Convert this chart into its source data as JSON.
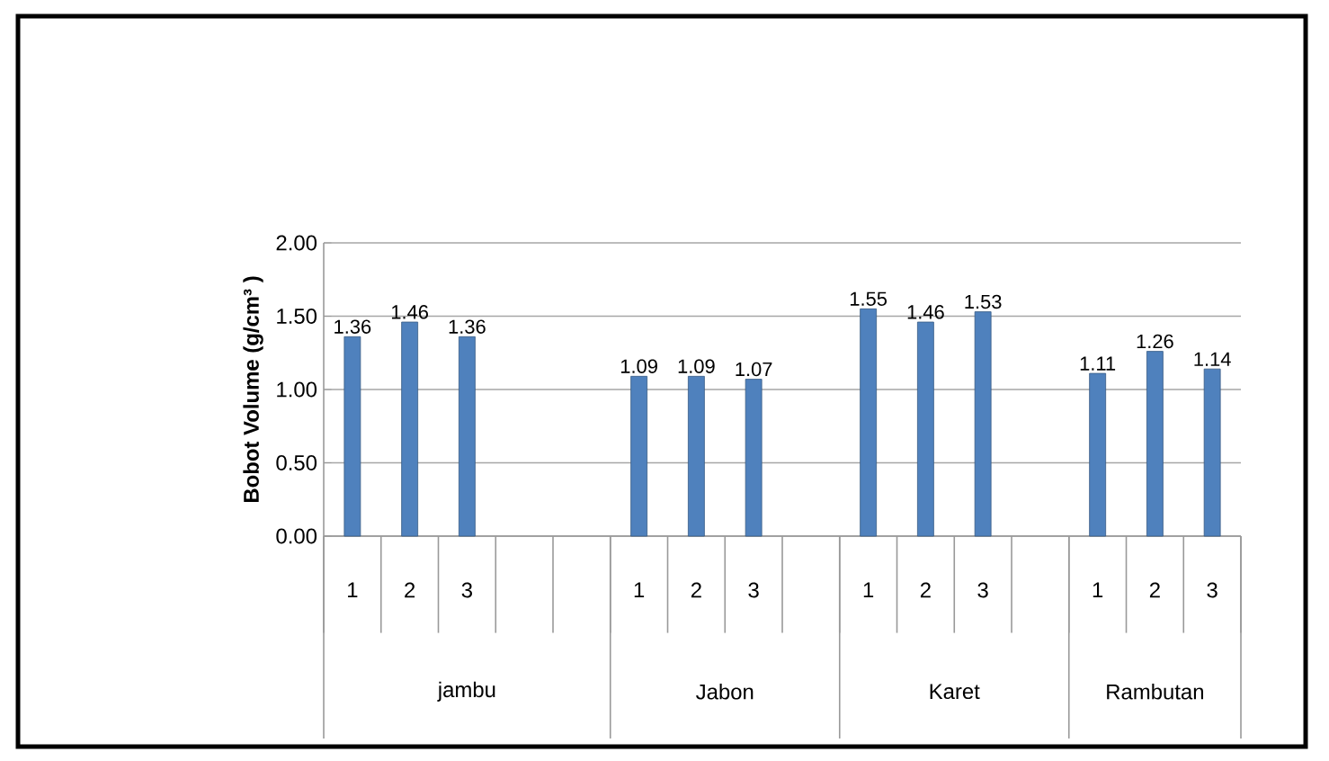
{
  "chart_data": {
    "type": "bar",
    "ylabel": "Bobot Volume  (g/cm³ )",
    "categories": [
      "1",
      "2",
      "3",
      null,
      null,
      "1",
      "2",
      "3",
      null,
      "1",
      "2",
      "3",
      null,
      "1",
      "2",
      "3"
    ],
    "values": [
      1.36,
      1.46,
      1.36,
      null,
      null,
      1.09,
      1.09,
      1.07,
      null,
      1.55,
      1.46,
      1.53,
      null,
      1.11,
      1.26,
      1.14
    ],
    "color": "#4f81bd",
    "ylim": [
      0,
      2
    ],
    "yticks": [
      {
        "value": 0,
        "label": "0.00"
      },
      {
        "value": 0.5,
        "label": "0.50"
      },
      {
        "value": 1,
        "label": "1.00"
      },
      {
        "value": 1.5,
        "label": "1.50"
      },
      {
        "value": 2,
        "label": "2.00"
      }
    ],
    "grid": "y",
    "value_labels": [
      "1.36",
      "1.46",
      "1.36",
      null,
      null,
      "1.09",
      "1.09",
      "1.07",
      null,
      "1.55",
      "1.46",
      "1.53",
      null,
      "1.11",
      "1.26",
      "1.14"
    ],
    "annotations": [
      "jambu",
      "Jabon",
      "Karet",
      "Rambutan"
    ]
  }
}
